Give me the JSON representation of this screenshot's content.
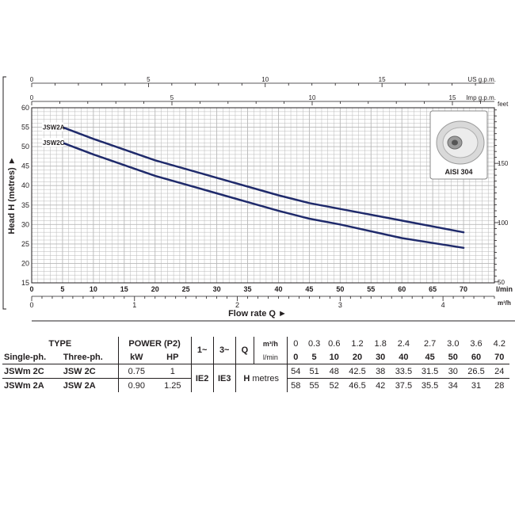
{
  "chart_data": {
    "type": "line",
    "xlabel": "Flow rate Q",
    "ylabel": "Head H (metres)",
    "x_unit": "l/min",
    "xlim": [
      0,
      75
    ],
    "ylim": [
      15,
      60
    ],
    "x_ticks": [
      0,
      5,
      10,
      15,
      20,
      25,
      30,
      35,
      40,
      45,
      50,
      55,
      60,
      65,
      70
    ],
    "y_ticks": [
      15,
      20,
      25,
      30,
      35,
      40,
      45,
      50,
      55,
      60
    ],
    "grid": true,
    "series": [
      {
        "name": "JSW2A",
        "x": [
          5,
          10,
          20,
          30,
          40,
          45,
          50,
          60,
          70
        ],
        "y": [
          55,
          52,
          46.5,
          42,
          37.5,
          35.5,
          34,
          31,
          28
        ]
      },
      {
        "name": "JSW2C",
        "x": [
          5,
          10,
          20,
          30,
          40,
          45,
          50,
          60,
          70
        ],
        "y": [
          51,
          48,
          42.5,
          38,
          33.5,
          31.5,
          30,
          26.5,
          24
        ]
      }
    ],
    "secondary_axes": {
      "us_gpm": {
        "label": "US g.p.m.",
        "ticks": [
          0,
          5,
          10,
          15
        ]
      },
      "imp_gpm": {
        "label": "Imp g.p.m.",
        "ticks": [
          0,
          5,
          10,
          15
        ]
      },
      "m3h": {
        "label": "m³/h",
        "ticks": [
          0,
          1,
          2,
          3,
          4
        ]
      },
      "feet": {
        "label": "feet",
        "ticks": [
          50,
          100,
          150
        ]
      }
    },
    "inset": {
      "label": "AISI 304"
    },
    "line_color": "#1f2a6b",
    "grid_color": "#b8b8b8"
  },
  "table": {
    "type_label": "TYPE",
    "single_ph_label": "Single-ph.",
    "three_ph_label": "Three-ph.",
    "power_label": "POWER (P2)",
    "kw_label": "kW",
    "hp_label": "HP",
    "phase1_label": "1~",
    "phase3_label": "3~",
    "q_label": "Q",
    "m3h_label": "m³/h",
    "lmin_label": "l/min",
    "h_label": "H",
    "metres_label": "metres",
    "ie2": "IE2",
    "ie3": "IE3",
    "q_m3h": [
      "0",
      "0.3",
      "0.6",
      "1.2",
      "1.8",
      "2.4",
      "2.7",
      "3.0",
      "3.6",
      "4.2"
    ],
    "q_lmin": [
      "0",
      "5",
      "10",
      "20",
      "30",
      "40",
      "45",
      "50",
      "60",
      "70"
    ],
    "rows": [
      {
        "single": "JSWm 2C",
        "three": "JSW 2C",
        "kw": "0.75",
        "hp": "1",
        "heads": [
          "54",
          "51",
          "48",
          "42.5",
          "38",
          "33.5",
          "31.5",
          "30",
          "26.5",
          "24"
        ]
      },
      {
        "single": "JSWm 2A",
        "three": "JSW 2A",
        "kw": "0.90",
        "hp": "1.25",
        "heads": [
          "58",
          "55",
          "52",
          "46.5",
          "42",
          "37.5",
          "35.5",
          "34",
          "31",
          "28"
        ]
      }
    ]
  }
}
